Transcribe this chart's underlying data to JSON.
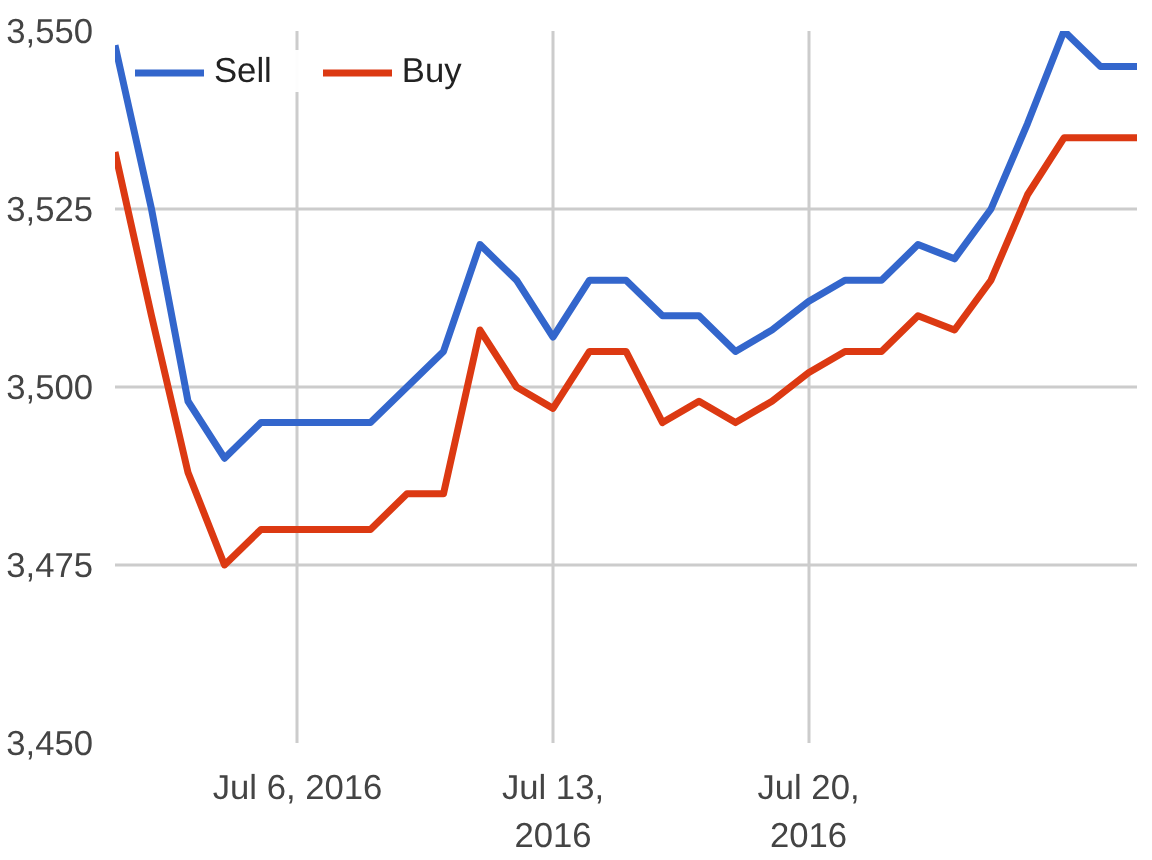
{
  "chart_data": {
    "type": "line",
    "x": [
      "2016-07-01",
      "2016-07-02",
      "2016-07-03",
      "2016-07-04",
      "2016-07-05",
      "2016-07-06",
      "2016-07-07",
      "2016-07-08",
      "2016-07-09",
      "2016-07-10",
      "2016-07-11",
      "2016-07-12",
      "2016-07-13",
      "2016-07-14",
      "2016-07-15",
      "2016-07-16",
      "2016-07-17",
      "2016-07-18",
      "2016-07-19",
      "2016-07-20",
      "2016-07-21",
      "2016-07-22",
      "2016-07-23",
      "2016-07-24",
      "2016-07-25",
      "2016-07-26",
      "2016-07-27",
      "2016-07-28",
      "2016-07-29"
    ],
    "series": [
      {
        "name": "Sell",
        "color": "#3366cc",
        "values": [
          3548,
          3525,
          3498,
          3490,
          3495,
          3495,
          3495,
          3495,
          3500,
          3505,
          3520,
          3515,
          3507,
          3515,
          3515,
          3510,
          3510,
          3505,
          3508,
          3512,
          3515,
          3515,
          3520,
          3518,
          3525,
          3537,
          3550,
          3545,
          3545
        ]
      },
      {
        "name": "Buy",
        "color": "#dc3912",
        "values": [
          3533,
          3510,
          3488,
          3475,
          3480,
          3480,
          3480,
          3480,
          3485,
          3485,
          3508,
          3500,
          3497,
          3505,
          3505,
          3495,
          3498,
          3495,
          3498,
          3502,
          3505,
          3505,
          3510,
          3508,
          3515,
          3527,
          3535,
          3535,
          3535
        ]
      }
    ],
    "xlim": [
      "2016-07-01",
      "2016-07-29"
    ],
    "xticks": [
      {
        "value": "2016-07-06",
        "label": "Jul 6, 2016"
      },
      {
        "value": "2016-07-13",
        "label": "Jul 13,\n2016"
      },
      {
        "value": "2016-07-20",
        "label": "Jul 20,\n2016"
      }
    ],
    "ylim": [
      3450,
      3550
    ],
    "yticks": [
      {
        "value": 3450,
        "label": "3,450"
      },
      {
        "value": 3475,
        "label": "3,475"
      },
      {
        "value": 3500,
        "label": "3,500"
      },
      {
        "value": 3525,
        "label": "3,525"
      },
      {
        "value": 3550,
        "label": "3,550"
      }
    ],
    "grid": true,
    "legend": "top left",
    "marker": "none",
    "line_style": "solid"
  }
}
